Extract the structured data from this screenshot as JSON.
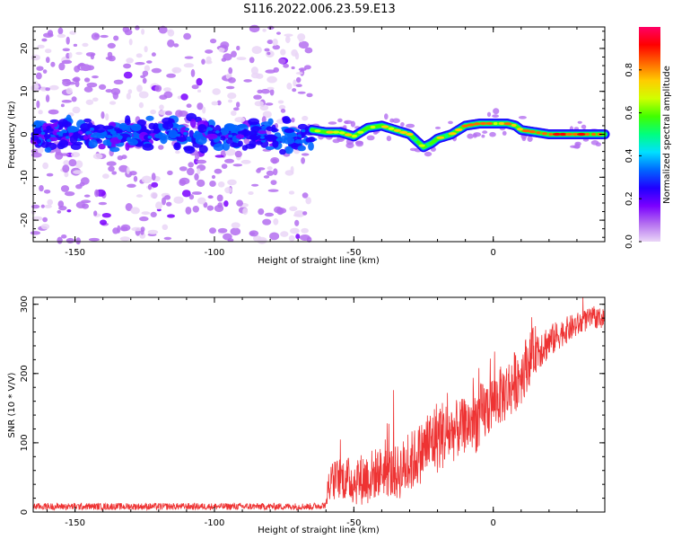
{
  "title": "S116.2022.006.23.59.E13",
  "chart_data": [
    {
      "type": "heatmap",
      "name": "spectrogram",
      "xlabel": "Height of straight line (km)",
      "ylabel": "Frequency (Hz)",
      "xlim": [
        -165,
        40
      ],
      "ylim": [
        -25,
        25
      ],
      "xticks": [
        -150,
        -100,
        -50,
        0
      ],
      "yticks": [
        -20,
        -10,
        0,
        10,
        20
      ],
      "colorbar": {
        "label": "Normalized spectral amplitude",
        "range": [
          0.0,
          1.0
        ],
        "ticks": [
          0.0,
          0.2,
          0.4,
          0.6,
          0.8
        ],
        "colors": [
          "#ffffff",
          "#ead6f7",
          "#b46ff0",
          "#7a00ff",
          "#2000ff",
          "#0066ff",
          "#00e0ff",
          "#00ff7f",
          "#40ff00",
          "#d0ff00",
          "#ffcc00",
          "#ff6600",
          "#ff0000",
          "#ff0066"
        ]
      },
      "noise_region_x": [
        -165,
        -65
      ],
      "signal_track": {
        "x": [
          -65,
          -60,
          -55,
          -50,
          -45,
          -40,
          -35,
          -30,
          -25,
          -22,
          -20,
          -15,
          -10,
          -5,
          0,
          5,
          8,
          10,
          15,
          20,
          25,
          30,
          35,
          40
        ],
        "freq": [
          1.0,
          0.5,
          0.5,
          -0.5,
          1.5,
          2.0,
          1.0,
          0.0,
          -3.0,
          -2.0,
          -1.0,
          0.0,
          2.0,
          2.5,
          2.5,
          2.5,
          2.0,
          1.0,
          0.5,
          0.0,
          0.0,
          0.0,
          0.0,
          0.0
        ]
      }
    },
    {
      "type": "line",
      "name": "snr",
      "xlabel": "Height of straight line (km)",
      "ylabel": "SNR (10 * V/V)",
      "xlim": [
        -165,
        40
      ],
      "ylim": [
        0,
        310
      ],
      "xticks": [
        -150,
        -100,
        -50,
        0
      ],
      "yticks": [
        0,
        100,
        200,
        300
      ],
      "line_color": "#ee3333",
      "series": [
        {
          "name": "SNR",
          "x": [
            -165,
            -65,
            -60,
            -59,
            -55,
            -50,
            -45,
            -40,
            -35,
            -30,
            -25,
            -20,
            -15,
            -10,
            -5,
            0,
            5,
            10,
            15,
            20,
            25,
            30,
            35,
            40
          ],
          "base": [
            8,
            8,
            10,
            40,
            50,
            45,
            50,
            60,
            55,
            70,
            90,
            110,
            115,
            125,
            135,
            160,
            175,
            200,
            235,
            245,
            260,
            270,
            280,
            280
          ],
          "amp": [
            5,
            5,
            5,
            30,
            30,
            35,
            40,
            35,
            40,
            45,
            45,
            55,
            45,
            40,
            50,
            40,
            45,
            45,
            35,
            25,
            20,
            18,
            15,
            15
          ]
        }
      ]
    }
  ]
}
